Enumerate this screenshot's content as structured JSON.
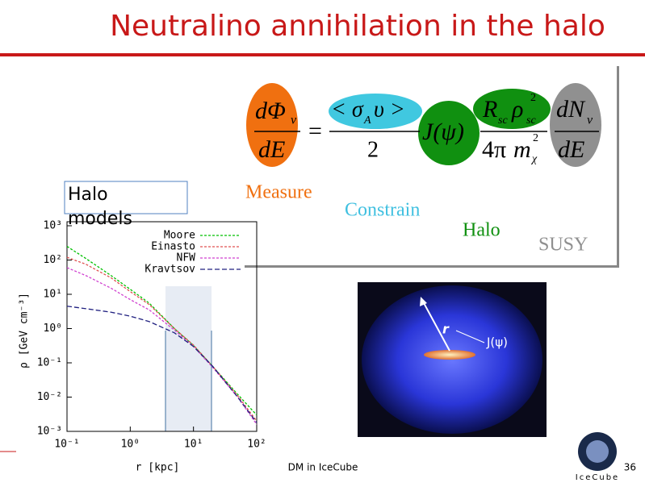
{
  "title": "Neutralino annihilation in the halo",
  "formula": {
    "tokens": [
      "dΦ",
      "ν",
      "dE",
      "=",
      "< σ",
      "A",
      "υ >",
      "2",
      "J(ψ)",
      "R",
      "sc",
      "ρ",
      "sc",
      "2",
      "4π",
      "m",
      "χ",
      "2",
      "dN",
      "ν",
      "dE"
    ],
    "labels": [
      "Measure",
      "Constrain",
      "Halo",
      "SUSY"
    ]
  },
  "callout": "Halo models",
  "chart_data": {
    "type": "line",
    "xlabel": "r [kpc]",
    "ylabel": "ρ [GeV cm⁻³]",
    "xscale": "log",
    "yscale": "log",
    "legend": "upper right",
    "xlim": [
      0.1,
      100
    ],
    "ylim": [
      0.001,
      1000
    ],
    "xticks": [
      {
        "value": 0.1,
        "label": "10⁻¹"
      },
      {
        "value": 1,
        "label": "10⁰"
      },
      {
        "value": 10,
        "label": "10¹"
      },
      {
        "value": 100,
        "label": "10²"
      }
    ],
    "yticks": [
      {
        "value": 0.001,
        "label": "10⁻³"
      },
      {
        "value": 0.01,
        "label": "10⁻²"
      },
      {
        "value": 0.1,
        "label": "10⁻¹"
      },
      {
        "value": 1,
        "label": "10⁰"
      },
      {
        "value": 10,
        "label": "10¹"
      },
      {
        "value": 100,
        "label": "10²"
      },
      {
        "value": 1000,
        "label": "10³"
      }
    ],
    "x": [
      0.1,
      0.2,
      0.5,
      1,
      2,
      5,
      10,
      20,
      50,
      100
    ],
    "series": [
      {
        "name": "Moore",
        "color": "#00c000",
        "values": [
          250,
          110,
          35,
          14,
          5.5,
          1.0,
          0.32,
          0.08,
          0.012,
          0.003
        ]
      },
      {
        "name": "Einasto",
        "color": "#e05050",
        "values": [
          120,
          75,
          30,
          12,
          5,
          1.0,
          0.33,
          0.08,
          0.011,
          0.002
        ]
      },
      {
        "name": "NFW",
        "color": "#d040d0",
        "values": [
          60,
          35,
          15,
          7,
          3.5,
          0.9,
          0.3,
          0.075,
          0.01,
          0.0016
        ]
      },
      {
        "name": "Kravtsov",
        "color": "#202080",
        "values": [
          4.5,
          3.8,
          3,
          2.3,
          1.6,
          0.75,
          0.3,
          0.08,
          0.01,
          0.0018
        ]
      }
    ]
  },
  "diagram": {
    "r_label": "r",
    "j_label": "J(ψ)"
  },
  "footer": {
    "center": "DM in IceCube",
    "page": "36",
    "logo": "IceCube"
  }
}
